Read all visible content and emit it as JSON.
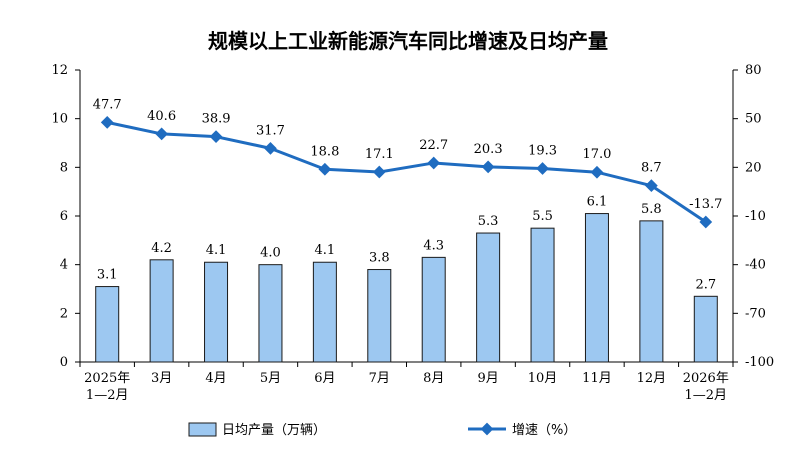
{
  "chart_data": {
    "type": "bar+line",
    "title": "规模以上工业新能源汽车同比增速及日均产量",
    "categories": [
      [
        "2025年",
        "1—2月"
      ],
      [
        "3月"
      ],
      [
        "4月"
      ],
      [
        "5月"
      ],
      [
        "6月"
      ],
      [
        "7月"
      ],
      [
        "8月"
      ],
      [
        "9月"
      ],
      [
        "10月"
      ],
      [
        "11月"
      ],
      [
        "12月"
      ],
      [
        "2026年",
        "1—2月"
      ]
    ],
    "series": [
      {
        "name": "日均产量（万辆）",
        "type": "bar",
        "axis": "left",
        "color": "#9dc8f1",
        "border": "#1a1a1a",
        "values": [
          3.1,
          4.2,
          4.1,
          4.0,
          4.1,
          3.8,
          4.3,
          5.3,
          5.5,
          6.1,
          5.8,
          2.7
        ],
        "labels": [
          "3.1",
          "4.2",
          "4.1",
          "4.0",
          "4.1",
          "3.8",
          "4.3",
          "5.3",
          "5.5",
          "6.1",
          "5.8",
          "2.7"
        ]
      },
      {
        "name": "增速（%）",
        "type": "line",
        "axis": "right",
        "color": "#1f6cc0",
        "values": [
          47.7,
          40.6,
          38.9,
          31.7,
          18.8,
          17.1,
          22.7,
          20.3,
          19.3,
          17.0,
          8.7,
          -13.7
        ],
        "labels": [
          "47.7",
          "40.6",
          "38.9",
          "31.7",
          "18.8",
          "17.1",
          "22.7",
          "20.3",
          "19.3",
          "17.0",
          "8.7",
          "-13.7"
        ]
      }
    ],
    "left_axis": {
      "ylim": [
        0,
        12
      ],
      "ticks": [
        "0",
        "2",
        "4",
        "6",
        "8",
        "10",
        "12"
      ]
    },
    "right_axis": {
      "ylim": [
        -100,
        80
      ],
      "ticks": [
        "-100",
        "-70",
        "-40",
        "-10",
        "20",
        "50",
        "80"
      ]
    },
    "legend": {
      "position": "bottom",
      "bar_label": "日均产量（万辆）",
      "line_label": "增速（%）"
    }
  }
}
